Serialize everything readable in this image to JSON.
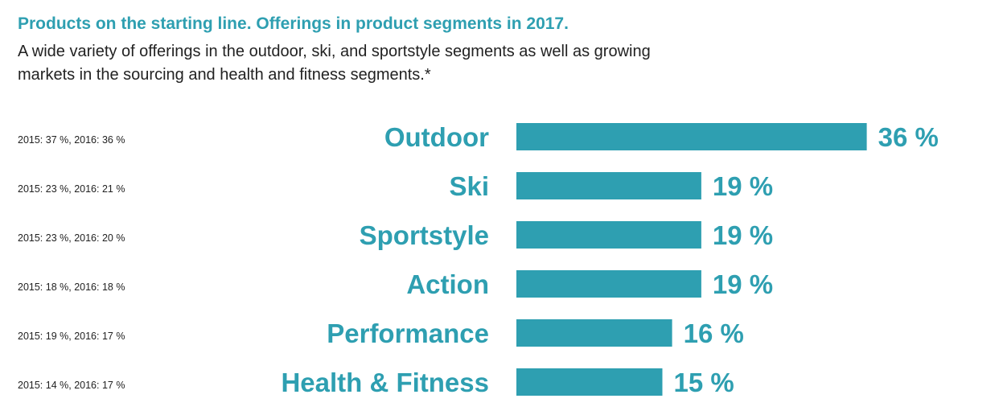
{
  "title": "Products on the starting line. Offerings in product segments in 2017.",
  "subtitle": "A wide variety of offerings in the outdoor, ski, and sportstyle segments as well as growing markets in the sourcing and health and fitness segments.*",
  "colors": {
    "accent": "#2e9fb1",
    "text": "#222222"
  },
  "chart_data": {
    "type": "bar",
    "orientation": "horizontal",
    "categories": [
      "Outdoor",
      "Ski",
      "Sportstyle",
      "Action",
      "Performance",
      "Health & Fitness"
    ],
    "values": [
      36,
      19,
      19,
      19,
      16,
      15
    ],
    "value_labels": [
      "36 %",
      "19 %",
      "19 %",
      "19 %",
      "16 %",
      "15 %"
    ],
    "unit": "%",
    "previous_years": [
      "2015: 37 %, 2016: 36 %",
      "2015: 23 %, 2016: 21 %",
      "2015: 23 %, 2016: 20 %",
      "2015: 18 %, 2016: 18 %",
      "2015: 19 %, 2016: 17 %",
      "2015: 14 %, 2016: 17 %"
    ],
    "grid": false,
    "legend": "none"
  }
}
